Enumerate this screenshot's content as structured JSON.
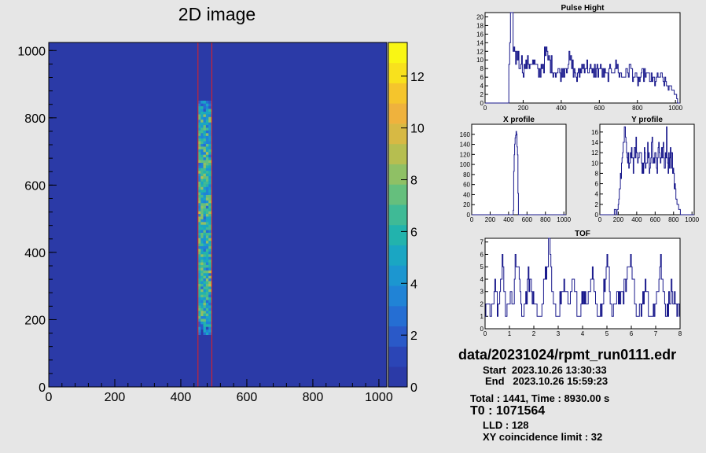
{
  "chart_data": [
    {
      "type": "heatmap",
      "title": "2D image",
      "xlim": [
        0,
        1024
      ],
      "ylim": [
        0,
        1024
      ],
      "xticks": [
        "0",
        "200",
        "400",
        "600",
        "800",
        "1000"
      ],
      "yticks": [
        "0",
        "200",
        "400",
        "600",
        "800",
        "1000"
      ],
      "colorbar": {
        "min": 0,
        "max": 13,
        "ticks": [
          "0",
          "2",
          "4",
          "6",
          "8",
          "10",
          "12"
        ]
      },
      "band": {
        "x_range": [
          452,
          490
        ],
        "y_range": [
          155,
          850
        ],
        "typical_count": 5
      },
      "roi": {
        "x": [
          452,
          494
        ],
        "y": [
          0,
          1024
        ],
        "color": "#e82020"
      }
    },
    {
      "type": "line",
      "title": "Pulse Hight",
      "xlim": [
        0,
        1024
      ],
      "ylim": [
        0,
        21
      ],
      "xticks": [
        "0",
        "200",
        "400",
        "600",
        "800",
        "1000"
      ],
      "yticks": [
        "0",
        "2",
        "4",
        "6",
        "8",
        "10",
        "12",
        "14",
        "16",
        "18",
        "20"
      ],
      "x": [
        0,
        120,
        128,
        136,
        144,
        152,
        160,
        168,
        176,
        184,
        200,
        240,
        280,
        320,
        360,
        400,
        440,
        480,
        520,
        560,
        600,
        640,
        680,
        720,
        760,
        800,
        840,
        880,
        920,
        960,
        1000,
        1010,
        1024
      ],
      "values": [
        0,
        0,
        13,
        20,
        17,
        12,
        10,
        13,
        9,
        11,
        8,
        10,
        7,
        11,
        8,
        7,
        10,
        6,
        9,
        7,
        8,
        6,
        9,
        6,
        8,
        5,
        7,
        5,
        6,
        4,
        2,
        0,
        0
      ]
    },
    {
      "type": "line",
      "title": "X profile",
      "xlim": [
        0,
        1024
      ],
      "ylim": [
        0,
        180
      ],
      "xticks": [
        "0",
        "200",
        "400",
        "600",
        "800",
        "1000"
      ],
      "yticks": [
        "0",
        "20",
        "40",
        "60",
        "80",
        "100",
        "120",
        "140",
        "160"
      ],
      "x": [
        0,
        450,
        456,
        462,
        468,
        474,
        480,
        486,
        492,
        498,
        504,
        1024
      ],
      "values": [
        0,
        0,
        95,
        125,
        150,
        160,
        168,
        155,
        140,
        110,
        0,
        0
      ]
    },
    {
      "type": "line",
      "title": "Y profile",
      "xlim": [
        0,
        1024
      ],
      "ylim": [
        0,
        17.5
      ],
      "xticks": [
        "0",
        "200",
        "400",
        "600",
        "800",
        "1000"
      ],
      "yticks": [
        "0",
        "2",
        "4",
        "6",
        "8",
        "10",
        "12",
        "14",
        "16"
      ],
      "x": [
        0,
        150,
        160,
        180,
        200,
        220,
        240,
        260,
        280,
        300,
        320,
        340,
        360,
        380,
        400,
        420,
        440,
        460,
        480,
        500,
        520,
        540,
        560,
        580,
        600,
        620,
        640,
        660,
        680,
        700,
        720,
        740,
        760,
        780,
        800,
        820,
        840,
        860,
        880,
        900,
        1024
      ],
      "values": [
        0,
        0,
        1,
        0,
        2,
        6,
        10,
        14,
        16,
        12,
        9,
        13,
        8,
        15,
        11,
        9,
        12,
        7,
        14,
        10,
        13,
        8,
        15,
        11,
        12,
        9,
        14,
        10,
        13,
        9,
        15,
        10,
        12,
        11,
        7,
        5,
        2,
        1,
        0,
        0,
        0
      ]
    },
    {
      "type": "line",
      "title": "TOF",
      "xlim": [
        0,
        8
      ],
      "ylim": [
        0,
        7.3
      ],
      "xticks": [
        "0",
        "1",
        "2",
        "3",
        "4",
        "5",
        "6",
        "7",
        "8"
      ],
      "yticks": [
        "0",
        "1",
        "2",
        "3",
        "4",
        "5",
        "6",
        "7"
      ],
      "x": [
        0,
        0.1,
        0.2,
        0.4,
        0.5,
        0.7,
        0.85,
        1.0,
        1.1,
        1.3,
        1.5,
        1.6,
        1.8,
        2.0,
        2.2,
        2.4,
        2.6,
        2.8,
        3.0,
        3.2,
        3.4,
        3.6,
        3.8,
        4.0,
        4.2,
        4.4,
        4.6,
        4.8,
        5.0,
        5.2,
        5.4,
        5.6,
        5.8,
        6.0,
        6.2,
        6.4,
        6.6,
        6.8,
        7.0,
        7.2,
        7.4,
        7.6,
        7.8,
        8.0
      ],
      "values": [
        1,
        2,
        1,
        4,
        2,
        5,
        1,
        3,
        2,
        6,
        1,
        2,
        4,
        2,
        1,
        3,
        7,
        2,
        1,
        4,
        2,
        5,
        1,
        3,
        2,
        4,
        1,
        2,
        5,
        1,
        3,
        2,
        4,
        6,
        1,
        2,
        3,
        1,
        2,
        5,
        1,
        3,
        2,
        1
      ]
    }
  ],
  "info": {
    "filename": "data/20231024/rpmt_run0111.edr",
    "start": "Start  2023.10.26 13:30:33",
    "end": "End   2023.10.26 15:59:23",
    "total": "Total : 1441, Time : 8930.00 s",
    "t0": "T0 : 1071564",
    "lld": "LLD : 128",
    "xy": "XY coincidence limit : 32"
  }
}
